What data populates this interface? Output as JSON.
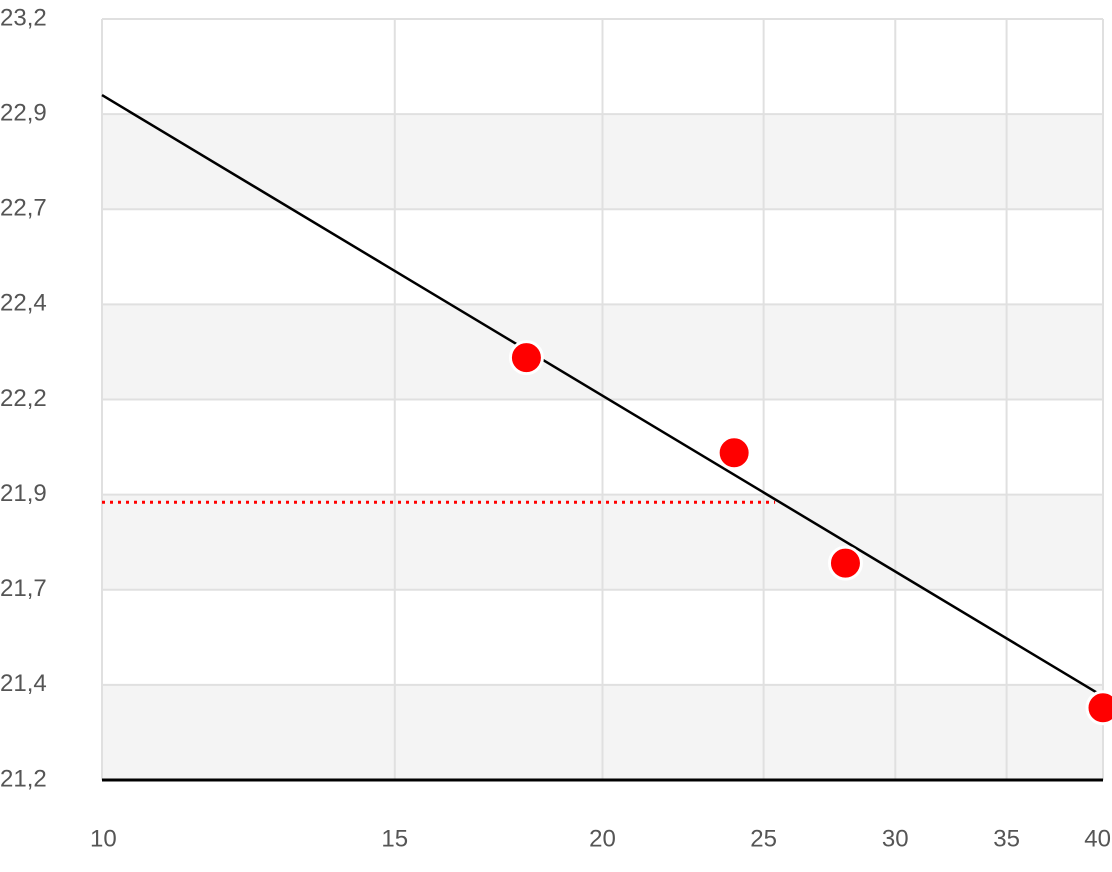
{
  "chart_data": {
    "type": "scatter",
    "x": [
      18,
      24,
      28,
      40
    ],
    "values": [
      22.31,
      22.06,
      21.77,
      21.39
    ],
    "color": "#ff0000",
    "trendline": {
      "x": [
        10,
        40
      ],
      "values": [
        23.0,
        21.42
      ],
      "color": "#000000"
    },
    "reference_line": {
      "x": [
        10,
        25.4
      ],
      "values": [
        21.93,
        21.93
      ],
      "color": "#ff0000",
      "style": "dotted"
    },
    "xscale": "log",
    "xlim": [
      10,
      40
    ],
    "xticks": [
      10,
      15,
      20,
      25,
      30,
      35,
      40
    ],
    "ylim": [
      21.2,
      23.2
    ],
    "yticks": [
      {
        "value": 21.2,
        "label": "21,2"
      },
      {
        "value": 21.45,
        "label": "21,4"
      },
      {
        "value": 21.7,
        "label": "21,7"
      },
      {
        "value": 21.95,
        "label": "21,9"
      },
      {
        "value": 22.2,
        "label": "22,2"
      },
      {
        "value": 22.45,
        "label": "22,4"
      },
      {
        "value": 22.7,
        "label": "22,7"
      },
      {
        "value": 22.95,
        "label": "22,9"
      },
      {
        "value": 23.2,
        "label": "23,2"
      }
    ],
    "grid": true,
    "bands": true
  }
}
